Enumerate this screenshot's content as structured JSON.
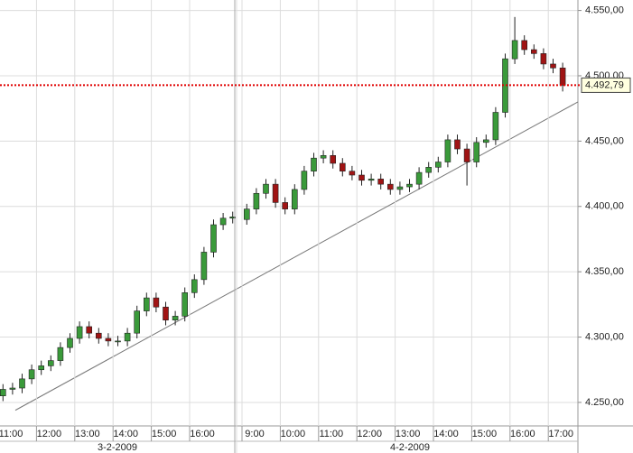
{
  "chart_data": {
    "type": "candlestick",
    "sessions": [
      {
        "date": "3-2-2009",
        "categories": [
          "11:00",
          null,
          null,
          null,
          "12:00",
          null,
          null,
          null,
          "13:00",
          null,
          null,
          null,
          "14:00",
          null,
          null,
          null,
          "15:00",
          null,
          null,
          null,
          "16:00",
          null,
          null,
          null,
          null
        ],
        "open": [
          4255,
          4260,
          4261,
          4268,
          4275,
          4278,
          4282,
          4292,
          4299,
          4308,
          4303,
          4299,
          4297,
          4297,
          4303,
          4320,
          4330,
          4323,
          4313,
          4316,
          4334,
          4344,
          4365,
          4386,
          4391
        ],
        "high": [
          4264,
          4265,
          4272,
          4279,
          4282,
          4286,
          4296,
          4303,
          4312,
          4312,
          4307,
          4303,
          4301,
          4307,
          4324,
          4334,
          4334,
          4327,
          4320,
          4338,
          4348,
          4369,
          4390,
          4395,
          4396
        ],
        "low": [
          4251,
          4256,
          4257,
          4264,
          4271,
          4274,
          4278,
          4288,
          4295,
          4299,
          4295,
          4293,
          4293,
          4293,
          4299,
          4316,
          4319,
          4309,
          4309,
          4312,
          4330,
          4340,
          4361,
          4382,
          4387
        ],
        "close": [
          4260,
          4261,
          4268,
          4275,
          4278,
          4282,
          4292,
          4299,
          4308,
          4303,
          4299,
          4297,
          4297,
          4303,
          4320,
          4330,
          4323,
          4313,
          4316,
          4334,
          4344,
          4365,
          4386,
          4391,
          4392
        ]
      },
      {
        "date": "4-2-2009",
        "categories": [
          "9:00",
          null,
          null,
          null,
          "10:00",
          null,
          null,
          null,
          "11:00",
          null,
          null,
          null,
          "12:00",
          null,
          null,
          null,
          "13:00",
          null,
          null,
          null,
          "14:00",
          null,
          null,
          null,
          "15:00",
          null,
          null,
          null,
          "16:00",
          null,
          null,
          null,
          "17:00",
          null
        ],
        "open": [
          4390,
          4398,
          4410,
          4417,
          4403,
          4398,
          4413,
          4427,
          4437,
          4439,
          4433,
          4427,
          4424,
          4420,
          4421,
          4417,
          4413,
          4415,
          4417,
          4426,
          4430,
          4434,
          4451,
          4444,
          4434,
          4449,
          4451,
          4472,
          4513,
          4527,
          4520,
          4517,
          4509,
          4506
        ],
        "high": [
          4402,
          4414,
          4421,
          4421,
          4407,
          4417,
          4431,
          4441,
          4443,
          4443,
          4437,
          4431,
          4428,
          4425,
          4425,
          4421,
          4419,
          4421,
          4430,
          4434,
          4438,
          4455,
          4455,
          4448,
          4453,
          4455,
          4476,
          4517,
          4545,
          4531,
          4524,
          4521,
          4513,
          4510
        ],
        "low": [
          4386,
          4394,
          4406,
          4399,
          4394,
          4394,
          4409,
          4423,
          4433,
          4429,
          4423,
          4420,
          4416,
          4416,
          4413,
          4409,
          4409,
          4411,
          4413,
          4422,
          4426,
          4430,
          4440,
          4416,
          4430,
          4445,
          4447,
          4468,
          4509,
          4516,
          4513,
          4505,
          4502,
          4488
        ],
        "close": [
          4398,
          4410,
          4417,
          4403,
          4398,
          4413,
          4427,
          4437,
          4439,
          4433,
          4427,
          4424,
          4420,
          4421,
          4417,
          4413,
          4415,
          4417,
          4426,
          4430,
          4434,
          4451,
          4444,
          4434,
          4449,
          4451,
          4472,
          4513,
          4527,
          4520,
          4517,
          4509,
          4506,
          4492.79
        ]
      }
    ],
    "ylim": [
      4232,
      4558
    ],
    "yticks": [
      {
        "value": 4250,
        "label": "4.250,00"
      },
      {
        "value": 4300,
        "label": "4.300,00"
      },
      {
        "value": 4350,
        "label": "4.350,00"
      },
      {
        "value": 4400,
        "label": "4.400,00"
      },
      {
        "value": 4450,
        "label": "4.450,00"
      },
      {
        "value": 4500,
        "label": "4.500,00"
      },
      {
        "value": 4550,
        "label": "4.550,00"
      }
    ],
    "grid": true,
    "up_color": "#3a9a3a",
    "down_color": "#a01414",
    "last_price": {
      "value": 4492.79,
      "label": "4.492,79",
      "color": "#e00000"
    },
    "trendline": {
      "start": 4244,
      "end": 4480,
      "color": "#777777"
    }
  }
}
